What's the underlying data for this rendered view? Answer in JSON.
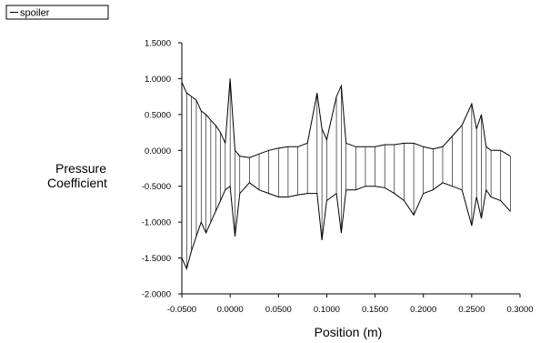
{
  "chart_data": {
    "type": "line",
    "title": "",
    "xlabel": "Position (m)",
    "ylabel_lines": [
      "Pressure",
      "Coefficient"
    ],
    "xlim": [
      -0.05,
      0.3
    ],
    "ylim": [
      -2.0,
      1.5
    ],
    "x_ticks": [
      -0.05,
      0.0,
      0.05,
      0.1,
      0.15,
      0.2,
      0.25,
      0.3
    ],
    "x_tick_labels": [
      "-0.0500",
      "0.0000",
      "0.0500",
      "0.1000",
      "0.1500",
      "0.2000",
      "0.2500",
      "0.3000"
    ],
    "y_ticks": [
      1.5,
      1.0,
      0.5,
      0.0,
      -0.5,
      -1.0,
      -1.5,
      -2.0
    ],
    "y_tick_labels": [
      "1.5000",
      "1.0000",
      "0.5000",
      "0.0000",
      "-0.5000",
      "-1.0000",
      "-1.5000",
      "-2.0000"
    ],
    "grid": false,
    "legend": {
      "position": "top-left",
      "entries": [
        "spoiler"
      ]
    },
    "series": [
      {
        "name": "spoiler",
        "color": "#000000",
        "upper_envelope": {
          "x": [
            -0.05,
            -0.045,
            -0.04,
            -0.035,
            -0.03,
            -0.025,
            -0.02,
            -0.015,
            -0.01,
            -0.005,
            0.0,
            0.005,
            0.01,
            0.02,
            0.03,
            0.04,
            0.05,
            0.06,
            0.07,
            0.08,
            0.09,
            0.095,
            0.1,
            0.11,
            0.115,
            0.12,
            0.13,
            0.14,
            0.15,
            0.16,
            0.17,
            0.18,
            0.19,
            0.2,
            0.21,
            0.22,
            0.23,
            0.24,
            0.25,
            0.255,
            0.26,
            0.265,
            0.27,
            0.28,
            0.29
          ],
          "y": [
            0.95,
            0.8,
            0.75,
            0.7,
            0.55,
            0.5,
            0.42,
            0.35,
            0.25,
            0.1,
            1.0,
            0.0,
            -0.08,
            -0.1,
            -0.05,
            0.0,
            0.03,
            0.05,
            0.05,
            0.1,
            0.8,
            0.3,
            0.15,
            0.75,
            0.9,
            0.1,
            0.05,
            0.05,
            0.05,
            0.08,
            0.08,
            0.1,
            0.1,
            0.05,
            0.02,
            0.05,
            0.2,
            0.35,
            0.65,
            0.3,
            0.5,
            0.05,
            0.0,
            0.0,
            -0.08
          ]
        },
        "lower_envelope": {
          "x": [
            -0.05,
            -0.045,
            -0.04,
            -0.035,
            -0.03,
            -0.025,
            -0.02,
            -0.015,
            -0.01,
            -0.005,
            0.0,
            0.005,
            0.01,
            0.02,
            0.03,
            0.04,
            0.05,
            0.06,
            0.07,
            0.08,
            0.09,
            0.095,
            0.1,
            0.11,
            0.115,
            0.12,
            0.13,
            0.14,
            0.15,
            0.16,
            0.17,
            0.18,
            0.19,
            0.2,
            0.21,
            0.22,
            0.23,
            0.24,
            0.25,
            0.255,
            0.26,
            0.265,
            0.27,
            0.28,
            0.29
          ],
          "y": [
            -1.5,
            -1.65,
            -1.4,
            -1.2,
            -1.0,
            -1.15,
            -1.0,
            -0.85,
            -0.7,
            -0.55,
            -0.5,
            -1.2,
            -0.6,
            -0.45,
            -0.55,
            -0.6,
            -0.65,
            -0.65,
            -0.62,
            -0.6,
            -0.6,
            -1.25,
            -0.7,
            -0.6,
            -1.15,
            -0.55,
            -0.55,
            -0.5,
            -0.5,
            -0.52,
            -0.6,
            -0.7,
            -0.9,
            -0.6,
            -0.55,
            -0.45,
            -0.5,
            -0.55,
            -1.05,
            -0.65,
            -0.95,
            -0.55,
            -0.65,
            -0.7,
            -0.85
          ]
        }
      }
    ]
  }
}
